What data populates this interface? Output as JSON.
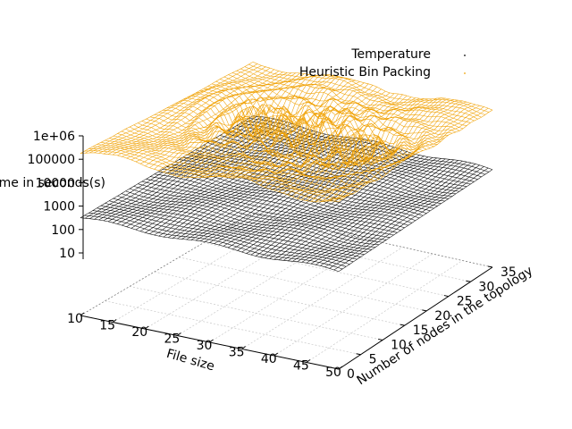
{
  "chart_data": {
    "type": "surface3d",
    "title": "",
    "xlabel": "File size",
    "ylabel": "Number of nodes in the topology",
    "zlabel": "Time in seconds(s)",
    "zlabel_overlap": "1e+06",
    "x_ticks": [
      "10",
      "15",
      "20",
      "25",
      "30",
      "35",
      "40",
      "45",
      "50"
    ],
    "y_ticks": [
      "0",
      "5",
      "10",
      "15",
      "20",
      "25",
      "30",
      "35"
    ],
    "z_ticks": [
      "10",
      "100",
      "1000",
      "10000",
      "100000",
      "1e+06"
    ],
    "xlim": [
      10,
      50
    ],
    "ylim": [
      0,
      35
    ],
    "zscale": "log",
    "grid": true,
    "legend_position": "top-right",
    "series": [
      {
        "name": "Temperature",
        "color": "#000000",
        "approx_z_log10": 2.5,
        "style": "dense wireframe surface"
      },
      {
        "name": "Heuristic Bin Packing",
        "color": "#f0a000",
        "approx_z_log10": 4.8,
        "style": "dense wireframe surface with ripples"
      }
    ]
  }
}
